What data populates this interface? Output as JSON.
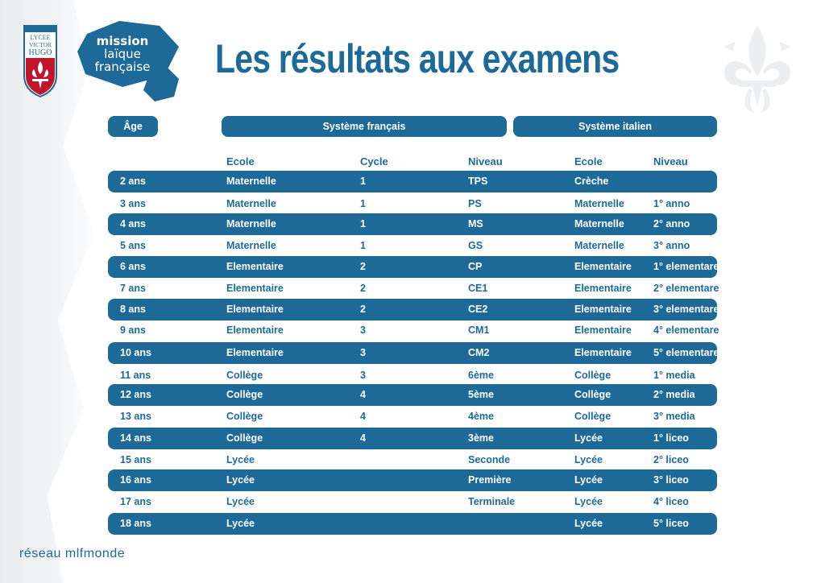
{
  "header": {
    "title": "Les résultats aux examens",
    "crest_text": [
      "LYCEE",
      "VICTOR",
      "HUGO"
    ],
    "mlf_logo_text": [
      "mission",
      "laïque",
      "française"
    ]
  },
  "table": {
    "age_label": "Âge",
    "systeme_francais": "Système français",
    "systeme_italien": "Système italien",
    "columns": {
      "fr_ecole": "Ecole",
      "fr_cycle": "Cycle",
      "fr_niveau": "Niveau",
      "it_ecole": "Ecole",
      "it_niveau": "Niveau"
    },
    "rows": [
      {
        "age": "2 ans",
        "fr_ecole": "Maternelle",
        "cycle": "1",
        "fr_niveau": "TPS",
        "it_ecole": "Crèche",
        "it_niveau": ""
      },
      {
        "age": "3 ans",
        "fr_ecole": "Maternelle",
        "cycle": "1",
        "fr_niveau": "PS",
        "it_ecole": "Maternelle",
        "it_niveau": "1° anno"
      },
      {
        "age": "4 ans",
        "fr_ecole": "Maternelle",
        "cycle": "1",
        "fr_niveau": "MS",
        "it_ecole": "Maternelle",
        "it_niveau": "2° anno"
      },
      {
        "age": "5 ans",
        "fr_ecole": "Maternelle",
        "cycle": "1",
        "fr_niveau": "GS",
        "it_ecole": "Maternelle",
        "it_niveau": "3° anno"
      },
      {
        "age": "6 ans",
        "fr_ecole": "Elementaire",
        "cycle": "2",
        "fr_niveau": "CP",
        "it_ecole": "Elementaire",
        "it_niveau": "1° elementare"
      },
      {
        "age": "7 ans",
        "fr_ecole": "Elementaire",
        "cycle": "2",
        "fr_niveau": "CE1",
        "it_ecole": "Elementaire",
        "it_niveau": "2° elementare"
      },
      {
        "age": "8 ans",
        "fr_ecole": "Elementaire",
        "cycle": "2",
        "fr_niveau": "CE2",
        "it_ecole": "Elementaire",
        "it_niveau": "3° elementare"
      },
      {
        "age": "9 ans",
        "fr_ecole": "Elementaire",
        "cycle": "3",
        "fr_niveau": "CM1",
        "it_ecole": "Elementaire",
        "it_niveau": "4° elementare"
      },
      {
        "age": "10 ans",
        "fr_ecole": "Elementaire",
        "cycle": "3",
        "fr_niveau": "CM2",
        "it_ecole": "Elementaire",
        "it_niveau": "5° elementare"
      },
      {
        "age": "11 ans",
        "fr_ecole": "Collège",
        "cycle": "3",
        "fr_niveau": "6ème",
        "it_ecole": "Collège",
        "it_niveau": "1° media"
      },
      {
        "age": "12 ans",
        "fr_ecole": "Collège",
        "cycle": "4",
        "fr_niveau": "5ème",
        "it_ecole": "Collège",
        "it_niveau": "2° media"
      },
      {
        "age": "13 ans",
        "fr_ecole": "Collège",
        "cycle": "4",
        "fr_niveau": "4ème",
        "it_ecole": "Collège",
        "it_niveau": "3° media"
      },
      {
        "age": "14 ans",
        "fr_ecole": "Collège",
        "cycle": "4",
        "fr_niveau": "3ème",
        "it_ecole": "Lycée",
        "it_niveau": "1° liceo"
      },
      {
        "age": "15 ans",
        "fr_ecole": "Lycée",
        "cycle": "",
        "fr_niveau": "Seconde",
        "it_ecole": "Lycée",
        "it_niveau": "2° liceo"
      },
      {
        "age": "16 ans",
        "fr_ecole": "Lycée",
        "cycle": "",
        "fr_niveau": "Première",
        "it_ecole": "Lycée",
        "it_niveau": "3° liceo"
      },
      {
        "age": "17 ans",
        "fr_ecole": "Lycée",
        "cycle": "",
        "fr_niveau": "Terminale",
        "it_ecole": "Lycée",
        "it_niveau": "4° liceo"
      },
      {
        "age": "18 ans",
        "fr_ecole": "Lycée",
        "cycle": "",
        "fr_niveau": "",
        "it_ecole": "Lycée",
        "it_niveau": "5° liceo"
      }
    ]
  },
  "footer": {
    "network": "réseau mlfmonde"
  },
  "colors": {
    "brand_blue": "#1d6a99",
    "crest_red": "#c0162c",
    "background": "#ffffff"
  }
}
